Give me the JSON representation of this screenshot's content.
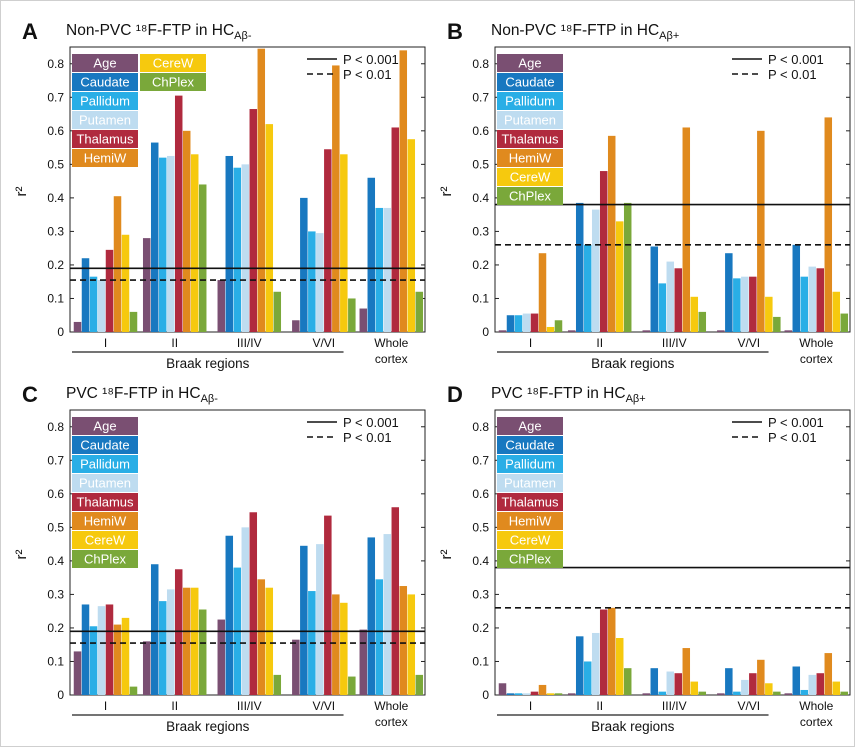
{
  "colors": {
    "Age": "#7a4f72",
    "Caudate": "#1878c0",
    "Pallidum": "#29aee6",
    "Putamen": "#bedcf0",
    "Thalamus": "#b02a3e",
    "HemiW": "#e08a1e",
    "CereW": "#f6c90e",
    "ChPlex": "#7aa83a"
  },
  "significance_key": {
    "p001": "P < 0.001",
    "p01": "P < 0.01"
  },
  "y_axis_label": "r²",
  "x_axis_title": "Braak regions",
  "chart_data": [
    {
      "type": "bar",
      "panel": "A",
      "title": "Non-PVC ¹⁸F-FTP in HC",
      "title_sub": "Aβ-",
      "categories": [
        "I",
        "II",
        "III/IV",
        "V/VI",
        "Whole cortex"
      ],
      "ylim": [
        0,
        0.85
      ],
      "yticks": [
        "0",
        "0.1",
        "0.2",
        "0.3",
        "0.4",
        "0.5",
        "0.6",
        "0.7",
        "0.8"
      ],
      "thresholds": {
        "p001": 0.19,
        "p01": 0.155
      },
      "legend_layout": "two-column",
      "series": [
        {
          "name": "Age",
          "values": [
            0.03,
            0.28,
            0.155,
            0.035,
            0.07
          ]
        },
        {
          "name": "Caudate",
          "values": [
            0.22,
            0.565,
            0.525,
            0.4,
            0.46
          ]
        },
        {
          "name": "Pallidum",
          "values": [
            0.165,
            0.52,
            0.49,
            0.3,
            0.37
          ]
        },
        {
          "name": "Putamen",
          "values": [
            0.155,
            0.525,
            0.5,
            0.295,
            0.37
          ]
        },
        {
          "name": "Thalamus",
          "values": [
            0.245,
            0.705,
            0.665,
            0.545,
            0.61
          ]
        },
        {
          "name": "HemiW",
          "values": [
            0.405,
            0.6,
            0.845,
            0.795,
            0.84
          ]
        },
        {
          "name": "CereW",
          "values": [
            0.29,
            0.53,
            0.62,
            0.53,
            0.575
          ]
        },
        {
          "name": "ChPlex",
          "values": [
            0.06,
            0.44,
            0.12,
            0.1,
            0.12
          ]
        }
      ]
    },
    {
      "type": "bar",
      "panel": "B",
      "title": "Non-PVC ¹⁸F-FTP in HC",
      "title_sub": "Aβ+",
      "categories": [
        "I",
        "II",
        "III/IV",
        "V/VI",
        "Whole cortex"
      ],
      "ylim": [
        0,
        0.85
      ],
      "yticks": [
        "0",
        "0.1",
        "0.2",
        "0.3",
        "0.4",
        "0.5",
        "0.6",
        "0.7",
        "0.8"
      ],
      "thresholds": {
        "p001": 0.38,
        "p01": 0.26
      },
      "legend_layout": "one-column",
      "series": [
        {
          "name": "Age",
          "values": [
            0.005,
            0.005,
            0.005,
            0.005,
            0.005
          ]
        },
        {
          "name": "Caudate",
          "values": [
            0.05,
            0.385,
            0.255,
            0.235,
            0.26
          ]
        },
        {
          "name": "Pallidum",
          "values": [
            0.05,
            0.26,
            0.145,
            0.16,
            0.165
          ]
        },
        {
          "name": "Putamen",
          "values": [
            0.055,
            0.365,
            0.21,
            0.165,
            0.195
          ]
        },
        {
          "name": "Thalamus",
          "values": [
            0.055,
            0.48,
            0.19,
            0.165,
            0.19
          ]
        },
        {
          "name": "HemiW",
          "values": [
            0.235,
            0.585,
            0.61,
            0.6,
            0.64
          ]
        },
        {
          "name": "CereW",
          "values": [
            0.015,
            0.33,
            0.105,
            0.105,
            0.12
          ]
        },
        {
          "name": "ChPlex",
          "values": [
            0.035,
            0.385,
            0.06,
            0.045,
            0.055
          ]
        }
      ]
    },
    {
      "type": "bar",
      "panel": "C",
      "title": "PVC ¹⁸F-FTP in HC",
      "title_sub": "Aβ-",
      "categories": [
        "I",
        "II",
        "III/IV",
        "V/VI",
        "Whole cortex"
      ],
      "ylim": [
        0,
        0.85
      ],
      "yticks": [
        "0",
        "0.1",
        "0.2",
        "0.3",
        "0.4",
        "0.5",
        "0.6",
        "0.7",
        "0.8"
      ],
      "thresholds": {
        "p001": 0.19,
        "p01": 0.155
      },
      "legend_layout": "one-column",
      "series": [
        {
          "name": "Age",
          "values": [
            0.13,
            0.16,
            0.225,
            0.165,
            0.195
          ]
        },
        {
          "name": "Caudate",
          "values": [
            0.27,
            0.39,
            0.475,
            0.445,
            0.47
          ]
        },
        {
          "name": "Pallidum",
          "values": [
            0.205,
            0.28,
            0.38,
            0.31,
            0.345
          ]
        },
        {
          "name": "Putamen",
          "values": [
            0.265,
            0.315,
            0.5,
            0.45,
            0.48
          ]
        },
        {
          "name": "Thalamus",
          "values": [
            0.27,
            0.375,
            0.545,
            0.535,
            0.56
          ]
        },
        {
          "name": "HemiW",
          "values": [
            0.21,
            0.32,
            0.345,
            0.3,
            0.325
          ]
        },
        {
          "name": "CereW",
          "values": [
            0.23,
            0.32,
            0.32,
            0.275,
            0.3
          ]
        },
        {
          "name": "ChPlex",
          "values": [
            0.025,
            0.255,
            0.06,
            0.055,
            0.06
          ]
        }
      ]
    },
    {
      "type": "bar",
      "panel": "D",
      "title": "PVC ¹⁸F-FTP in HC",
      "title_sub": "Aβ+",
      "categories": [
        "I",
        "II",
        "III/IV",
        "V/VI",
        "Whole cortex"
      ],
      "ylim": [
        0,
        0.85
      ],
      "yticks": [
        "0",
        "0.1",
        "0.2",
        "0.3",
        "0.4",
        "0.5",
        "0.6",
        "0.7",
        "0.8"
      ],
      "thresholds": {
        "p001": 0.38,
        "p01": 0.26
      },
      "legend_layout": "one-column",
      "series": [
        {
          "name": "Age",
          "values": [
            0.035,
            0.005,
            0.005,
            0.005,
            0.005
          ]
        },
        {
          "name": "Caudate",
          "values": [
            0.005,
            0.175,
            0.08,
            0.08,
            0.085
          ]
        },
        {
          "name": "Pallidum",
          "values": [
            0.005,
            0.1,
            0.01,
            0.01,
            0.015
          ]
        },
        {
          "name": "Putamen",
          "values": [
            0.005,
            0.185,
            0.07,
            0.045,
            0.06
          ]
        },
        {
          "name": "Thalamus",
          "values": [
            0.01,
            0.255,
            0.065,
            0.065,
            0.065
          ]
        },
        {
          "name": "HemiW",
          "values": [
            0.03,
            0.26,
            0.14,
            0.105,
            0.125
          ]
        },
        {
          "name": "CereW",
          "values": [
            0.005,
            0.17,
            0.04,
            0.035,
            0.04
          ]
        },
        {
          "name": "ChPlex",
          "values": [
            0.005,
            0.08,
            0.01,
            0.01,
            0.01
          ]
        }
      ]
    }
  ]
}
